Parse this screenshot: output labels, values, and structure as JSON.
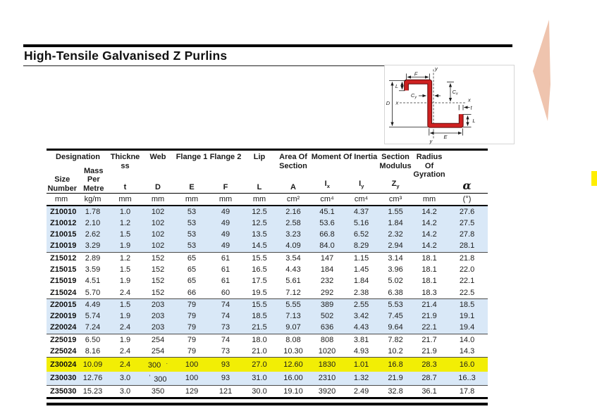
{
  "title": "High-Tensile Galvanised Z Purlins",
  "colors": {
    "profile_red": "#ce2121",
    "row_blue": "#d9e8f7",
    "highlight_yellow": "#f2ee05",
    "decoration_salmon": "#efc4ae",
    "marker_yellow": "#ffee00"
  },
  "diagram": {
    "labels": {
      "top_flange": "F",
      "lip_top": "L",
      "depth": "D",
      "axis_x_left": "x",
      "axis_x_right": "x",
      "axis_y_top": "y",
      "axis_y_bottom": "y",
      "c_base_y": "C",
      "c_sub_y": "y",
      "c_base_x": "C",
      "c_sub_x": "x",
      "thickness": "t",
      "lip_bottom": "L",
      "bottom_flange": "E"
    }
  },
  "table": {
    "header": {
      "designation": {
        "label": "Designation",
        "sub1": "Size Number",
        "sub2": "Mass Per Metre",
        "unit1": "mm",
        "unit2": "kg/m"
      },
      "thickness": {
        "label": "Thickne​ss",
        "symbol": "t",
        "unit": "mm"
      },
      "web": {
        "label": "Web",
        "symbol": "D",
        "unit": "mm"
      },
      "flange1": {
        "label": "Flange 1",
        "symbol": "E",
        "unit": "mm"
      },
      "flange2": {
        "label": "Flange 2",
        "symbol": "F",
        "unit": "mm"
      },
      "lip": {
        "label": "Lip",
        "symbol": "L",
        "unit": "mm"
      },
      "area": {
        "label": "Area Of Section",
        "symbol": "A",
        "unit": "cm²"
      },
      "inertia": {
        "label": "Moment Of Inertia",
        "sym1_base": "I",
        "sym1_sub": "x",
        "sym2_base": "I",
        "sym2_sub": "y",
        "unit1": "cm⁴",
        "unit2": "cm⁴"
      },
      "modulus": {
        "label": "Section Modulus",
        "sym_base": "Z",
        "sym_sub": "y",
        "unit": "cm³"
      },
      "radius": {
        "label": "Radius Of Gyration",
        "unit": "mm"
      },
      "alpha": {
        "symbol": "α",
        "unit": "(°)"
      }
    },
    "groups": [
      {
        "shade": true,
        "rows": [
          {
            "size": "Z10010",
            "values": [
              "1.78",
              "1.0",
              "102",
              "53",
              "49",
              "12.5",
              "2.16",
              "45.1",
              "4.37",
              "1.55",
              "14.2",
              "27.6"
            ]
          },
          {
            "size": "Z10012",
            "values": [
              "2.10",
              "1.2",
              "102",
              "53",
              "49",
              "12.5",
              "2.58",
              "53.6",
              "5.16",
              "1.84",
              "14.2",
              "27.5"
            ]
          },
          {
            "size": "Z10015",
            "values": [
              "2.62",
              "1.5",
              "102",
              "53",
              "49",
              "13.5",
              "3.23",
              "66.8",
              "6.52",
              "2.32",
              "14.2",
              "27.8"
            ]
          },
          {
            "size": "Z10019",
            "values": [
              "3.29",
              "1.9",
              "102",
              "53",
              "49",
              "14.5",
              "4.09",
              "84.0",
              "8.29",
              "2.94",
              "14.2",
              "28.1"
            ]
          }
        ]
      },
      {
        "shade": false,
        "rows": [
          {
            "size": "Z15012",
            "values": [
              "2.89",
              "1.2",
              "152",
              "65",
              "61",
              "15.5",
              "3.54",
              "147",
              "1.15",
              "3.14",
              "18.1",
              "21.8"
            ]
          },
          {
            "size": "Z15015",
            "values": [
              "3.59",
              "1.5",
              "152",
              "65",
              "61",
              "16.5",
              "4.43",
              "184",
              "1.45",
              "3.96",
              "18.1",
              "22.0"
            ]
          },
          {
            "size": "Z15019",
            "values": [
              "4.51",
              "1.9",
              "152",
              "65",
              "61",
              "17.5",
              "5.61",
              "232",
              "1.84",
              "5.02",
              "18.1",
              "22.1"
            ]
          },
          {
            "size": "Z15024",
            "values": [
              "5.70",
              "2.4",
              "152",
              "66",
              "60",
              "19.5",
              "7.12",
              "292",
              "2.38",
              "6.38",
              "18.3",
              "22.5"
            ]
          }
        ]
      },
      {
        "shade": true,
        "rows": [
          {
            "size": "Z20015",
            "values": [
              "4.49",
              "1.5",
              "203",
              "79",
              "74",
              "15.5",
              "5.55",
              "389",
              "2.55",
              "5.53",
              "21.4",
              "18.5"
            ]
          },
          {
            "size": "Z20019",
            "values": [
              "5.74",
              "1.9",
              "203",
              "79",
              "74",
              "18.5",
              "7.13",
              "502",
              "3.42",
              "7.45",
              "21.9",
              "19.1"
            ]
          },
          {
            "size": "Z20024",
            "values": [
              "7.24",
              "2.4",
              "203",
              "79",
              "73",
              "21.5",
              "9.07",
              "636",
              "4.43",
              "9.64",
              "22.1",
              "19.4"
            ]
          }
        ]
      },
      {
        "shade": false,
        "rows": [
          {
            "size": "Z25019",
            "values": [
              "6.50",
              "1.9",
              "254",
              "79",
              "74",
              "18.0",
              "8.08",
              "808",
              "3.81",
              "7.82",
              "21.7",
              "14.0"
            ]
          },
          {
            "size": "Z25024",
            "values": [
              "8.16",
              "2.4",
              "254",
              "79",
              "73",
              "21.0",
              "10.30",
              "1020",
              "4.93",
              "10.2",
              "21.9",
              "14.3"
            ]
          }
        ]
      },
      {
        "shade": true,
        "rows": [
          {
            "size": "Z30024",
            "highlight": true,
            "post": {
              "2": "·"
            },
            "values": [
              "10.09",
              "2.4",
              "300",
              "100",
              "93",
              "27.0",
              "12.60",
              "1830",
              "1.01",
              "16.8",
              "28.3",
              "16.0"
            ]
          },
          {
            "size": "Z30030",
            "pre": {
              "2": "'"
            },
            "values": [
              "12.76",
              "3.0",
              "300",
              "100",
              "93",
              "31.0",
              "16.00",
              "2310",
              "1.32",
              "21.9",
              "28.7",
              "16..3"
            ]
          }
        ]
      },
      {
        "shade": false,
        "rows": [
          {
            "size": "Z35030",
            "values": [
              "15.23",
              "3.0",
              "350",
              "129",
              "121",
              "30.0",
              "19.10",
              "3920",
              "2.49",
              "32.8",
              "36.1",
              "17.8"
            ]
          }
        ]
      }
    ]
  }
}
